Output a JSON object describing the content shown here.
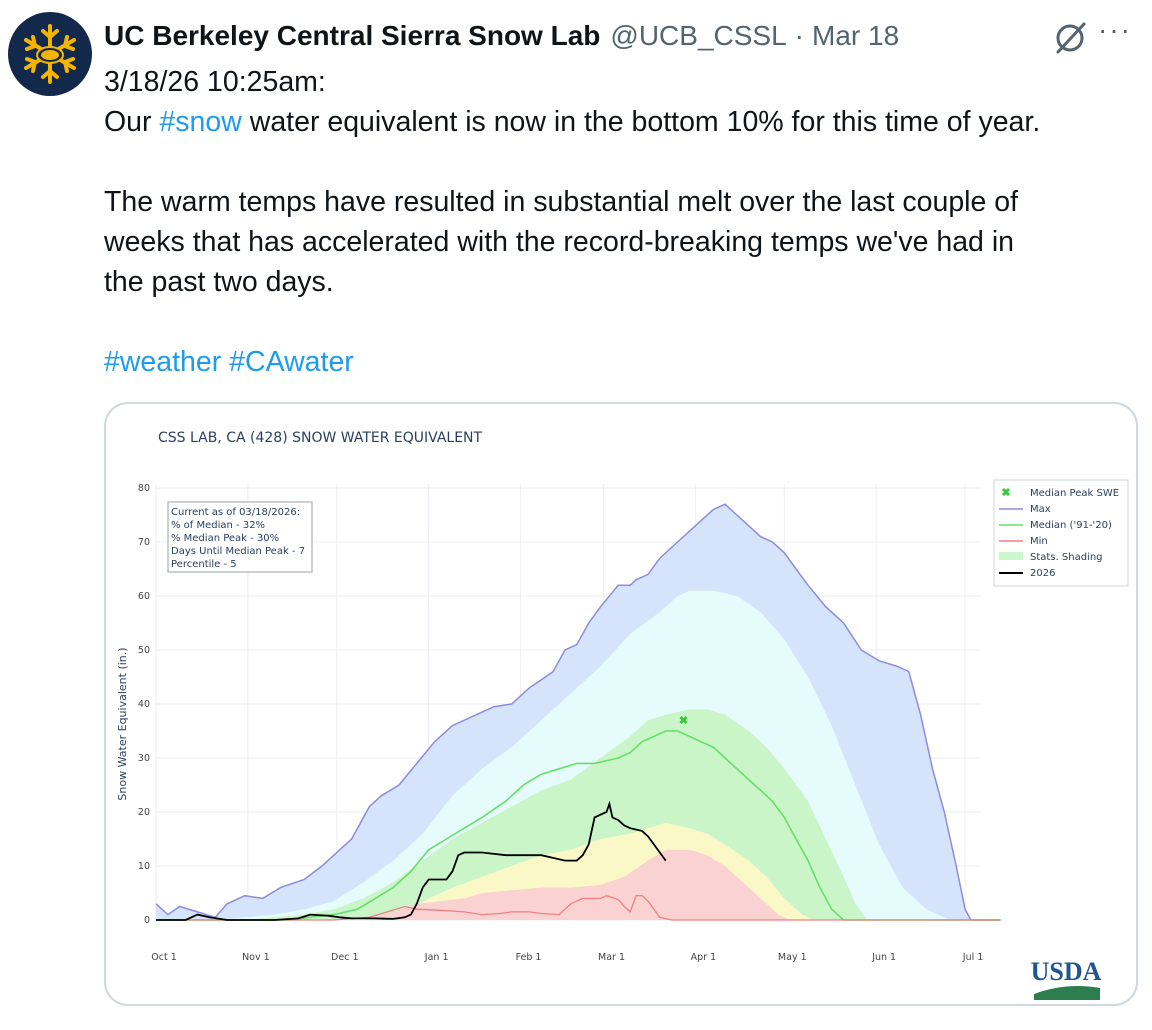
{
  "tweet": {
    "author_name": "UC Berkeley Central Sierra Snow Lab",
    "handle": "@UCB_CSSL",
    "separator": "·",
    "date": "Mar 18",
    "more_label": "···",
    "avatar_icon": "snowflake-bear-icon",
    "line1": "3/18/26 10:25am:",
    "line2_pre": "Our ",
    "line2_tag": "#snow",
    "line2_post": " water equivalent is now in the bottom 10% for this time of year.",
    "para2_l1": "The warm temps have resulted in substantial melt over the last couple of",
    "para2_l2": "weeks that has accelerated with the record-breaking temps we've had in",
    "para2_l3": "the past two days.",
    "hashtag1": "#weather",
    "hashtag2": "#CAwater"
  },
  "colors": {
    "link": "#1d9bf0",
    "max_line": "#8c8cdc",
    "median_line": "#66e066",
    "min_line": "#f08080",
    "current": "#000000",
    "median_peak": "#33cc33"
  },
  "chart_data": {
    "type": "area",
    "title": "CSS LAB, CA (428) SNOW WATER EQUIVALENT",
    "ylabel": "Snow Water Equivalent (in.)",
    "xlabel": "",
    "ylim": [
      0,
      80
    ],
    "yticks": [
      0,
      10,
      20,
      30,
      40,
      50,
      60,
      70,
      80
    ],
    "xticks": [
      "Oct 1",
      "Nov 1",
      "Dec 1",
      "Jan 1",
      "Feb 1",
      "Mar 1",
      "Apr 1",
      "May 1",
      "Jun 1",
      "Jul 1"
    ],
    "x_units": "days since Oct 1",
    "grid": true,
    "legend_position": "top-right",
    "legend": [
      "Median Peak SWE",
      "Max",
      "Median ('91-'20)",
      "Min",
      "Stats. Shading",
      "2026"
    ],
    "annotation": {
      "l1": "Current as of 03/18/2026:",
      "l2": "% of Median - 32%",
      "l3": "% Median Peak - 30%",
      "l4": "Days Until Median Peak - 7",
      "l5": "Percentile - 5"
    },
    "median_peak": {
      "x": 178,
      "y": 37
    },
    "series": [
      {
        "name": "Max",
        "points": [
          [
            0,
            3
          ],
          [
            4,
            1
          ],
          [
            8,
            2.5
          ],
          [
            14,
            1.5
          ],
          [
            20,
            0.5
          ],
          [
            24,
            3
          ],
          [
            30,
            4.5
          ],
          [
            36,
            4
          ],
          [
            42,
            6
          ],
          [
            50,
            7.5
          ],
          [
            56,
            10
          ],
          [
            62,
            13
          ],
          [
            66,
            15
          ],
          [
            72,
            21
          ],
          [
            76,
            23
          ],
          [
            82,
            25
          ],
          [
            88,
            29
          ],
          [
            94,
            33
          ],
          [
            100,
            36
          ],
          [
            108,
            38
          ],
          [
            114,
            39.5
          ],
          [
            120,
            40
          ],
          [
            126,
            43
          ],
          [
            130,
            44.5
          ],
          [
            134,
            46
          ],
          [
            138,
            50
          ],
          [
            142,
            51
          ],
          [
            146,
            55
          ],
          [
            150,
            58
          ],
          [
            156,
            62
          ],
          [
            160,
            62
          ],
          [
            162,
            63
          ],
          [
            166,
            64
          ],
          [
            170,
            67
          ],
          [
            176,
            70
          ],
          [
            180,
            72
          ],
          [
            184,
            74
          ],
          [
            188,
            76
          ],
          [
            192,
            77
          ],
          [
            196,
            75
          ],
          [
            200,
            73
          ],
          [
            204,
            71
          ],
          [
            208,
            70
          ],
          [
            212,
            68
          ],
          [
            216,
            65
          ],
          [
            220,
            62
          ],
          [
            226,
            58
          ],
          [
            232,
            55
          ],
          [
            238,
            50
          ],
          [
            244,
            48
          ],
          [
            250,
            47
          ],
          [
            254,
            46
          ],
          [
            258,
            38
          ],
          [
            262,
            28
          ],
          [
            266,
            20
          ],
          [
            270,
            10
          ],
          [
            273,
            2
          ],
          [
            275,
            0
          ],
          [
            285,
            0
          ]
        ]
      },
      {
        "name": "Stats. Shading 90th",
        "points": [
          [
            0,
            0
          ],
          [
            20,
            0
          ],
          [
            30,
            0.5
          ],
          [
            40,
            1
          ],
          [
            50,
            2
          ],
          [
            60,
            3.5
          ],
          [
            70,
            7
          ],
          [
            80,
            11
          ],
          [
            90,
            16
          ],
          [
            100,
            23
          ],
          [
            110,
            28
          ],
          [
            120,
            32
          ],
          [
            130,
            37
          ],
          [
            140,
            42
          ],
          [
            150,
            47
          ],
          [
            160,
            53
          ],
          [
            170,
            57
          ],
          [
            176,
            60
          ],
          [
            180,
            61
          ],
          [
            188,
            61
          ],
          [
            196,
            60
          ],
          [
            204,
            57
          ],
          [
            212,
            52
          ],
          [
            220,
            45
          ],
          [
            228,
            36
          ],
          [
            236,
            25
          ],
          [
            244,
            14
          ],
          [
            252,
            6
          ],
          [
            260,
            2
          ],
          [
            268,
            0
          ],
          [
            285,
            0
          ]
        ]
      },
      {
        "name": "Stats. Shading 75th",
        "points": [
          [
            0,
            0
          ],
          [
            30,
            0
          ],
          [
            40,
            0.5
          ],
          [
            50,
            1
          ],
          [
            60,
            2
          ],
          [
            70,
            4
          ],
          [
            80,
            7
          ],
          [
            90,
            11
          ],
          [
            100,
            15
          ],
          [
            110,
            18
          ],
          [
            120,
            21
          ],
          [
            130,
            24
          ],
          [
            140,
            26
          ],
          [
            150,
            30
          ],
          [
            160,
            34
          ],
          [
            166,
            37
          ],
          [
            172,
            38
          ],
          [
            180,
            39
          ],
          [
            186,
            39
          ],
          [
            192,
            38
          ],
          [
            200,
            35
          ],
          [
            206,
            32
          ],
          [
            212,
            28
          ],
          [
            220,
            22
          ],
          [
            226,
            15
          ],
          [
            232,
            8
          ],
          [
            236,
            3
          ],
          [
            240,
            0
          ],
          [
            285,
            0
          ]
        ]
      },
      {
        "name": "Median ('91-'20)",
        "points": [
          [
            0,
            0
          ],
          [
            30,
            0
          ],
          [
            45,
            0
          ],
          [
            52,
            0.5
          ],
          [
            60,
            1
          ],
          [
            68,
            2
          ],
          [
            74,
            4
          ],
          [
            80,
            6
          ],
          [
            86,
            9
          ],
          [
            92,
            13
          ],
          [
            98,
            15
          ],
          [
            104,
            17
          ],
          [
            110,
            19
          ],
          [
            118,
            22
          ],
          [
            124,
            25
          ],
          [
            130,
            27
          ],
          [
            136,
            28
          ],
          [
            142,
            29
          ],
          [
            148,
            29
          ],
          [
            156,
            30
          ],
          [
            160,
            31
          ],
          [
            164,
            33
          ],
          [
            168,
            34
          ],
          [
            172,
            35
          ],
          [
            176,
            35
          ],
          [
            180,
            34
          ],
          [
            184,
            33
          ],
          [
            188,
            32
          ],
          [
            192,
            30
          ],
          [
            196,
            28
          ],
          [
            200,
            26
          ],
          [
            204,
            24
          ],
          [
            208,
            22
          ],
          [
            212,
            19
          ],
          [
            216,
            15
          ],
          [
            220,
            11
          ],
          [
            224,
            6
          ],
          [
            228,
            2
          ],
          [
            232,
            0
          ],
          [
            285,
            0
          ]
        ]
      },
      {
        "name": "Stats. Shading 25th",
        "points": [
          [
            0,
            0
          ],
          [
            60,
            0
          ],
          [
            70,
            0.5
          ],
          [
            80,
            1
          ],
          [
            86,
            2
          ],
          [
            92,
            4
          ],
          [
            100,
            6
          ],
          [
            110,
            8
          ],
          [
            120,
            10
          ],
          [
            130,
            12
          ],
          [
            140,
            13
          ],
          [
            150,
            15
          ],
          [
            160,
            16
          ],
          [
            166,
            17
          ],
          [
            172,
            18
          ],
          [
            180,
            17
          ],
          [
            186,
            16
          ],
          [
            192,
            14
          ],
          [
            200,
            11
          ],
          [
            206,
            8
          ],
          [
            212,
            4
          ],
          [
            218,
            1
          ],
          [
            222,
            0
          ],
          [
            285,
            0
          ]
        ]
      },
      {
        "name": "Stats. Shading 10th",
        "points": [
          [
            0,
            0
          ],
          [
            70,
            0
          ],
          [
            80,
            1.5
          ],
          [
            88,
            3
          ],
          [
            96,
            3.5
          ],
          [
            104,
            4
          ],
          [
            110,
            5
          ],
          [
            120,
            5.5
          ],
          [
            130,
            6
          ],
          [
            140,
            6
          ],
          [
            150,
            6.5
          ],
          [
            158,
            8
          ],
          [
            166,
            11
          ],
          [
            172,
            13
          ],
          [
            180,
            13
          ],
          [
            186,
            12
          ],
          [
            192,
            10
          ],
          [
            198,
            7
          ],
          [
            204,
            4
          ],
          [
            210,
            1
          ],
          [
            214,
            0
          ],
          [
            285,
            0
          ]
        ]
      },
      {
        "name": "Min",
        "points": [
          [
            0,
            0
          ],
          [
            60,
            0
          ],
          [
            72,
            0.5
          ],
          [
            78,
            1.5
          ],
          [
            84,
            2.5
          ],
          [
            88,
            2
          ],
          [
            96,
            1.8
          ],
          [
            104,
            1.5
          ],
          [
            110,
            1
          ],
          [
            116,
            1.2
          ],
          [
            120,
            1.5
          ],
          [
            126,
            1.5
          ],
          [
            130,
            1.2
          ],
          [
            136,
            1
          ],
          [
            140,
            3
          ],
          [
            144,
            4
          ],
          [
            150,
            4
          ],
          [
            152,
            4.5
          ],
          [
            156,
            3.8
          ],
          [
            158,
            2.5
          ],
          [
            160,
            1.5
          ],
          [
            162,
            4.5
          ],
          [
            164,
            4.5
          ],
          [
            166,
            3.5
          ],
          [
            168,
            2
          ],
          [
            170,
            0.5
          ],
          [
            174,
            0
          ],
          [
            285,
            0
          ]
        ]
      },
      {
        "name": "2026",
        "points": [
          [
            0,
            0
          ],
          [
            10,
            0
          ],
          [
            14,
            1
          ],
          [
            18,
            0.5
          ],
          [
            24,
            0
          ],
          [
            40,
            0
          ],
          [
            48,
            0.3
          ],
          [
            52,
            1
          ],
          [
            58,
            0.8
          ],
          [
            62,
            0.5
          ],
          [
            66,
            0.3
          ],
          [
            74,
            0.3
          ],
          [
            80,
            0.2
          ],
          [
            84,
            0.5
          ],
          [
            86,
            1
          ],
          [
            88,
            3
          ],
          [
            90,
            6
          ],
          [
            92,
            7.5
          ],
          [
            98,
            7.5
          ],
          [
            100,
            9
          ],
          [
            102,
            12
          ],
          [
            104,
            12.5
          ],
          [
            110,
            12.5
          ],
          [
            118,
            12
          ],
          [
            124,
            12
          ],
          [
            130,
            12
          ],
          [
            134,
            11.5
          ],
          [
            138,
            11
          ],
          [
            142,
            11
          ],
          [
            144,
            12
          ],
          [
            146,
            14
          ],
          [
            148,
            19
          ],
          [
            150,
            19.5
          ],
          [
            152,
            20
          ],
          [
            153,
            21.5
          ],
          [
            154,
            19
          ],
          [
            156,
            18.5
          ],
          [
            157,
            18
          ],
          [
            158,
            17.5
          ],
          [
            160,
            17
          ],
          [
            164,
            16.5
          ],
          [
            166,
            15.5
          ],
          [
            168,
            14
          ],
          [
            170,
            12.5
          ],
          [
            172,
            11
          ]
        ]
      }
    ]
  }
}
